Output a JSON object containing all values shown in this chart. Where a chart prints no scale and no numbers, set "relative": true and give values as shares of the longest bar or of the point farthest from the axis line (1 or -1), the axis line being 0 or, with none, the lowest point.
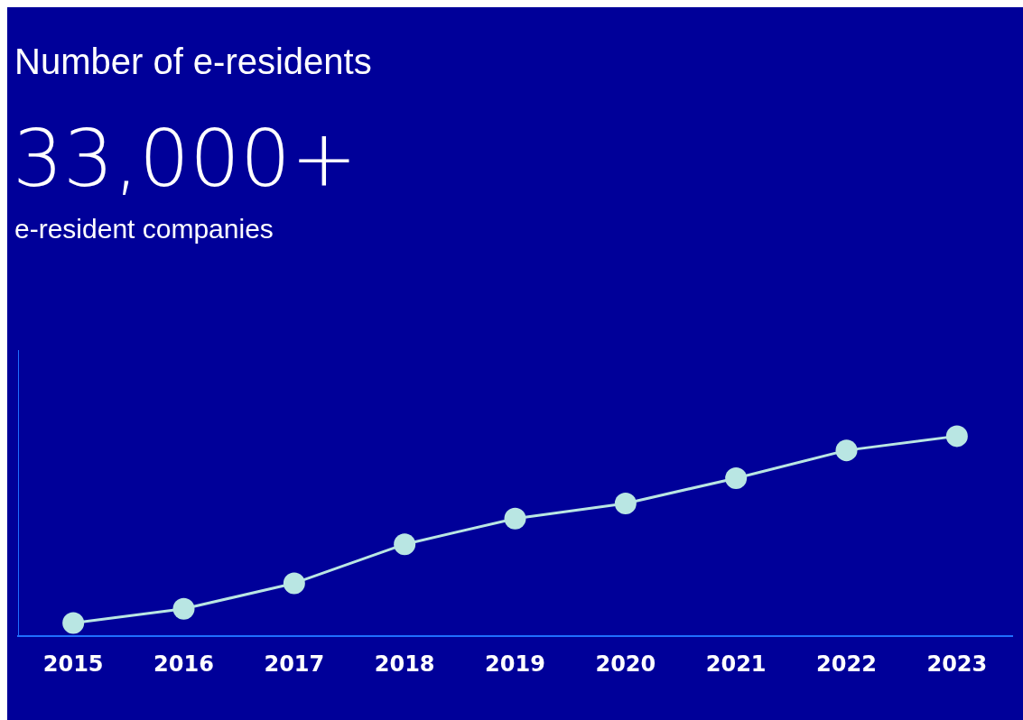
{
  "chart_data": {
    "type": "line",
    "title": "Number of e-residents",
    "subtitle": "33,000+",
    "annotations": [
      "e-resident companies"
    ],
    "categories": [
      "2015",
      "2016",
      "2017",
      "2018",
      "2019",
      "2020",
      "2021",
      "2022",
      "2023"
    ],
    "series": [
      {
        "color": "#b9e6e3",
        "values": [
          0.066,
          0.137,
          0.265,
          0.46,
          0.588,
          0.664,
          0.79,
          0.929,
          1
        ]
      }
    ],
    "relative": true,
    "grid": false,
    "legend": false,
    "marker": "circle",
    "line_style": "solid"
  }
}
